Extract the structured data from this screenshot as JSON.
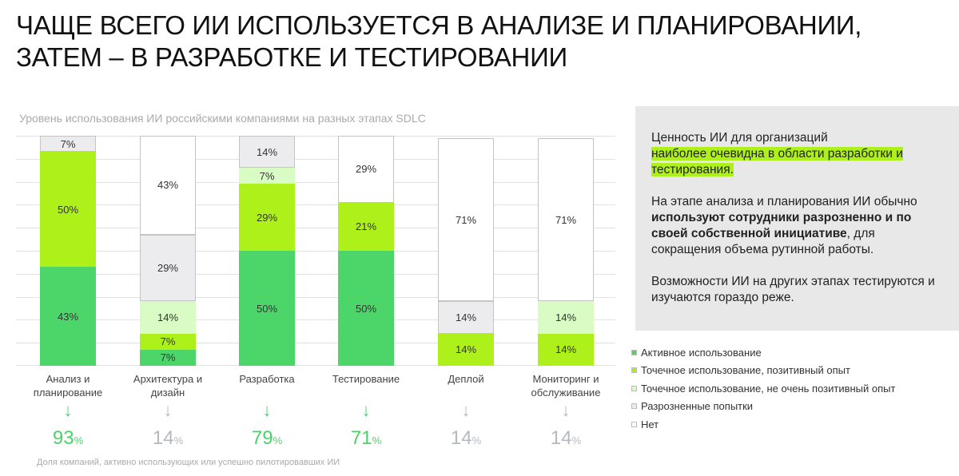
{
  "title_line1": "ЧАЩЕ ВСЕГО ИИ ИСПОЛЬЗУЕТСЯ В АНАЛИЗЕ И ПЛАНИРОВАНИИ,",
  "title_line2": "ЗАТЕМ – В РАЗРАБОТКЕ И ТЕСТИРОВАНИИ",
  "panel": {
    "p1_a": "Ценность ИИ для организаций ",
    "p1_hl": "наиболее очевидна в области разработки и тестирования.",
    "p2_a": "На этапе анализа и планирования ИИ обычно ",
    "p2_b": "используют сотрудники разрозненно и по своей собственной инициативе",
    "p2_c": ", для сокращения объема рутинной работы.",
    "p3": "Возможности ИИ на других этапах тестируются и изучаются гораздо реже."
  },
  "footnote": "Доля компаний, активно использующих или успешно пилотировавших ИИ",
  "summary": [
    {
      "value": "93",
      "unit": "%",
      "color": "#4cd26a"
    },
    {
      "value": "14",
      "unit": "%",
      "color": "#b4b8c0"
    },
    {
      "value": "79",
      "unit": "%",
      "color": "#4cd26a"
    },
    {
      "value": "71",
      "unit": "%",
      "color": "#4cd26a"
    },
    {
      "value": "14",
      "unit": "%",
      "color": "#b4b8c0"
    },
    {
      "value": "14",
      "unit": "%",
      "color": "#b4b8c0"
    }
  ],
  "chart_data": {
    "type": "bar",
    "stacked": true,
    "title": "Уровень использования ИИ российскими компаниями на разных этапах SDLC",
    "categories": [
      "Анализ и планирование",
      "Архитектура и дизайн",
      "Разработка",
      "Тестирование",
      "Деплой",
      "Мониторинг и обслуживание"
    ],
    "ylim": [
      0,
      100
    ],
    "legend_position": "right",
    "series": [
      {
        "name": "Активное использование",
        "color": "#4cd66a",
        "values": [
          43,
          7,
          50,
          50,
          0,
          0
        ]
      },
      {
        "name": "Точечное использование, позитивный опыт",
        "color": "#aef01a",
        "values": [
          50,
          7,
          29,
          21,
          14,
          14
        ]
      },
      {
        "name": "Точечное использование, не очень позитивный опыт",
        "color": "#d8fcc4",
        "values": [
          0,
          14,
          7,
          0,
          0,
          14
        ]
      },
      {
        "name": "Разрозненные попытки",
        "color": "#ececee",
        "values": [
          7,
          29,
          14,
          0,
          14,
          0
        ]
      },
      {
        "name": "Нет",
        "color": "#ffffff",
        "values": [
          0,
          43,
          0,
          29,
          71,
          71
        ]
      }
    ]
  }
}
